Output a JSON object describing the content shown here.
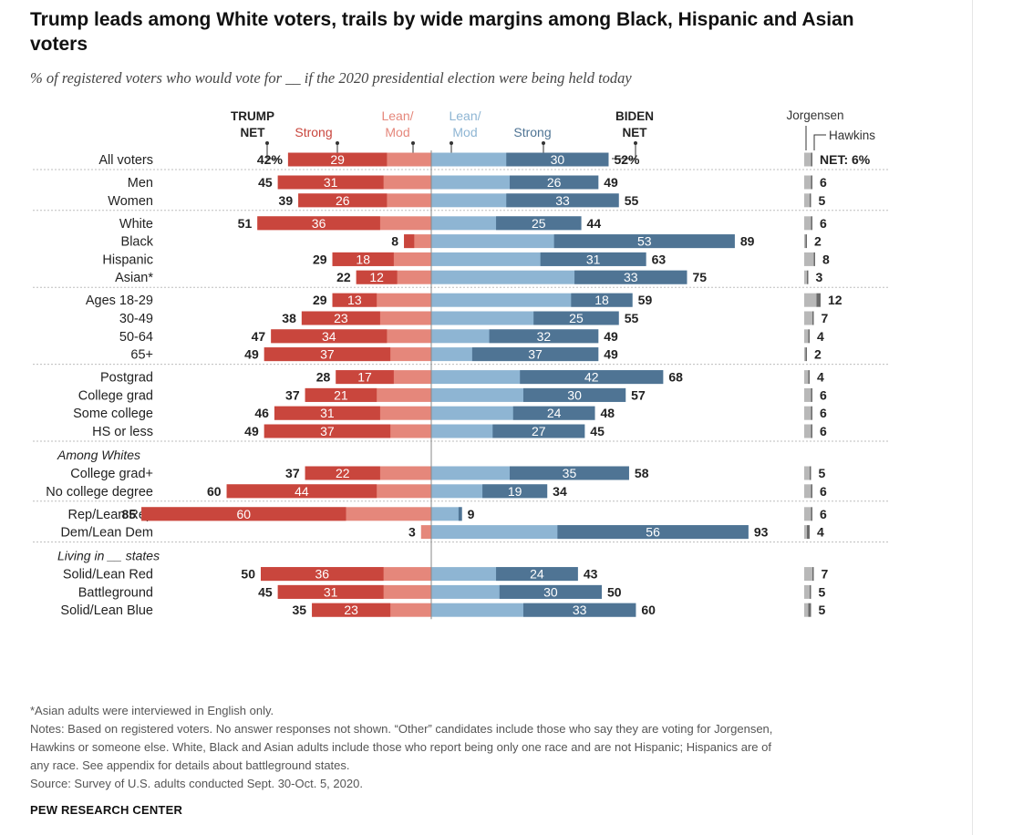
{
  "title": "Trump leads among White voters, trails by wide margins among Black, Hispanic and Asian voters",
  "subtitle": "% of registered voters who would vote for __ if the 2020 presidential election were being held today",
  "colors": {
    "trump_strong": "#c9463d",
    "trump_lean": "#e5877b",
    "biden_lean": "#8eb5d3",
    "biden_strong": "#4f7494",
    "other_jorgensen": "#b8b8b8",
    "other_hawkins": "#6b6b6b"
  },
  "headers": {
    "trump_net": [
      "TRUMP",
      "NET"
    ],
    "trump_strong": "Strong",
    "trump_lean": [
      "Lean/",
      "Mod"
    ],
    "biden_lean": [
      "Lean/",
      "Mod"
    ],
    "biden_strong": "Strong",
    "biden_net": [
      "BIDEN",
      "NET"
    ],
    "jorgensen": "Jorgensen",
    "hawkins": "Hawkins"
  },
  "chart_data": {
    "type": "bar",
    "subtype": "diverging stacked bar",
    "series": [
      {
        "name": "Trump Strong"
      },
      {
        "name": "Trump Lean/Mod"
      },
      {
        "name": "Biden Lean/Mod"
      },
      {
        "name": "Biden Strong"
      },
      {
        "name": "Jorgensen"
      },
      {
        "name": "Hawkins"
      }
    ],
    "groups": [
      {
        "heading": "",
        "rows": [
          {
            "label": "All voters",
            "trump_net": 42,
            "trump_strong": 29,
            "biden_net": 52,
            "biden_strong": 30,
            "other_net": 6,
            "trump_net_text": "42%",
            "biden_net_text": "52%",
            "other_text": "NET: 6%",
            "jorgensen": 5,
            "hawkins": 1
          }
        ]
      },
      {
        "heading": "",
        "rows": [
          {
            "label": "Men",
            "trump_net": 45,
            "trump_strong": 31,
            "biden_net": 49,
            "biden_strong": 26,
            "other_net": 6,
            "jorgensen": 5,
            "hawkins": 1
          },
          {
            "label": "Women",
            "trump_net": 39,
            "trump_strong": 26,
            "biden_net": 55,
            "biden_strong": 33,
            "other_net": 5,
            "jorgensen": 4,
            "hawkins": 1
          }
        ]
      },
      {
        "heading": "",
        "rows": [
          {
            "label": "White",
            "trump_net": 51,
            "trump_strong": 36,
            "biden_net": 44,
            "biden_strong": 25,
            "other_net": 6,
            "jorgensen": 5,
            "hawkins": 1
          },
          {
            "label": "Black",
            "trump_net": 8,
            "trump_strong": 3,
            "biden_net": 89,
            "biden_strong": 53,
            "other_net": 2,
            "jorgensen": 1,
            "hawkins": 1
          },
          {
            "label": "Hispanic",
            "trump_net": 29,
            "trump_strong": 18,
            "biden_net": 63,
            "biden_strong": 31,
            "other_net": 8,
            "jorgensen": 7,
            "hawkins": 1
          },
          {
            "label": "Asian*",
            "trump_net": 22,
            "trump_strong": 12,
            "biden_net": 75,
            "biden_strong": 33,
            "other_net": 3,
            "jorgensen": 2,
            "hawkins": 1
          }
        ]
      },
      {
        "heading": "",
        "rows": [
          {
            "label": "Ages 18-29",
            "trump_net": 29,
            "trump_strong": 13,
            "biden_net": 59,
            "biden_strong": 18,
            "other_net": 12,
            "jorgensen": 9,
            "hawkins": 3
          },
          {
            "label": "30-49",
            "trump_net": 38,
            "trump_strong": 23,
            "biden_net": 55,
            "biden_strong": 25,
            "other_net": 7,
            "jorgensen": 6,
            "hawkins": 1
          },
          {
            "label": "50-64",
            "trump_net": 47,
            "trump_strong": 34,
            "biden_net": 49,
            "biden_strong": 32,
            "other_net": 4,
            "jorgensen": 3,
            "hawkins": 1
          },
          {
            "label": "65+",
            "trump_net": 49,
            "trump_strong": 37,
            "biden_net": 49,
            "biden_strong": 37,
            "other_net": 2,
            "jorgensen": 1,
            "hawkins": 1
          }
        ]
      },
      {
        "heading": "",
        "rows": [
          {
            "label": "Postgrad",
            "trump_net": 28,
            "trump_strong": 17,
            "biden_net": 68,
            "biden_strong": 42,
            "other_net": 4,
            "jorgensen": 3,
            "hawkins": 1
          },
          {
            "label": "College grad",
            "trump_net": 37,
            "trump_strong": 21,
            "biden_net": 57,
            "biden_strong": 30,
            "other_net": 6,
            "jorgensen": 5,
            "hawkins": 1
          },
          {
            "label": "Some college",
            "trump_net": 46,
            "trump_strong": 31,
            "biden_net": 48,
            "biden_strong": 24,
            "other_net": 6,
            "jorgensen": 5,
            "hawkins": 1
          },
          {
            "label": "HS or less",
            "trump_net": 49,
            "trump_strong": 37,
            "biden_net": 45,
            "biden_strong": 27,
            "other_net": 6,
            "jorgensen": 5,
            "hawkins": 1
          }
        ]
      },
      {
        "heading": "Among Whites",
        "rows": [
          {
            "label": "College grad+",
            "trump_net": 37,
            "trump_strong": 22,
            "biden_net": 58,
            "biden_strong": 35,
            "other_net": 5,
            "jorgensen": 4,
            "hawkins": 1
          },
          {
            "label": "No college degree",
            "trump_net": 60,
            "trump_strong": 44,
            "biden_net": 34,
            "biden_strong": 19,
            "other_net": 6,
            "jorgensen": 5,
            "hawkins": 1
          }
        ]
      },
      {
        "heading": "",
        "rows": [
          {
            "label": "Rep/Lean Rep",
            "trump_net": 85,
            "trump_strong": 60,
            "biden_net": 9,
            "biden_strong": 1,
            "other_net": 6,
            "jorgensen": 5,
            "hawkins": 1
          },
          {
            "label": "Dem/Lean Dem",
            "trump_net": 3,
            "trump_strong": 0,
            "biden_net": 93,
            "biden_strong": 56,
            "other_net": 4,
            "jorgensen": 2,
            "hawkins": 2
          }
        ]
      },
      {
        "heading": "Living in __ states",
        "rows": [
          {
            "label": "Solid/Lean Red",
            "trump_net": 50,
            "trump_strong": 36,
            "biden_net": 43,
            "biden_strong": 24,
            "other_net": 7,
            "jorgensen": 6,
            "hawkins": 1
          },
          {
            "label": "Battleground",
            "trump_net": 45,
            "trump_strong": 31,
            "biden_net": 50,
            "biden_strong": 30,
            "other_net": 5,
            "jorgensen": 4,
            "hawkins": 1
          },
          {
            "label": "Solid/Lean Blue",
            "trump_net": 35,
            "trump_strong": 23,
            "biden_net": 60,
            "biden_strong": 33,
            "other_net": 5,
            "jorgensen": 3,
            "hawkins": 2
          }
        ]
      }
    ]
  },
  "footer": {
    "footnote": "*Asian adults were interviewed in English only.",
    "notes_line1": "Notes: Based on registered voters. No answer responses not shown. “Other” candidates include those who say they are voting for Jorgensen,",
    "notes_line2": "Hawkins or someone else. White, Black and Asian adults include those who report being only one race and are not Hispanic; Hispanics are of",
    "notes_line3": "any race. See appendix for details about battleground states.",
    "source": "Source: Survey of U.S. adults conducted Sept. 30-Oct. 5, 2020.",
    "brand": "PEW RESEARCH CENTER"
  }
}
